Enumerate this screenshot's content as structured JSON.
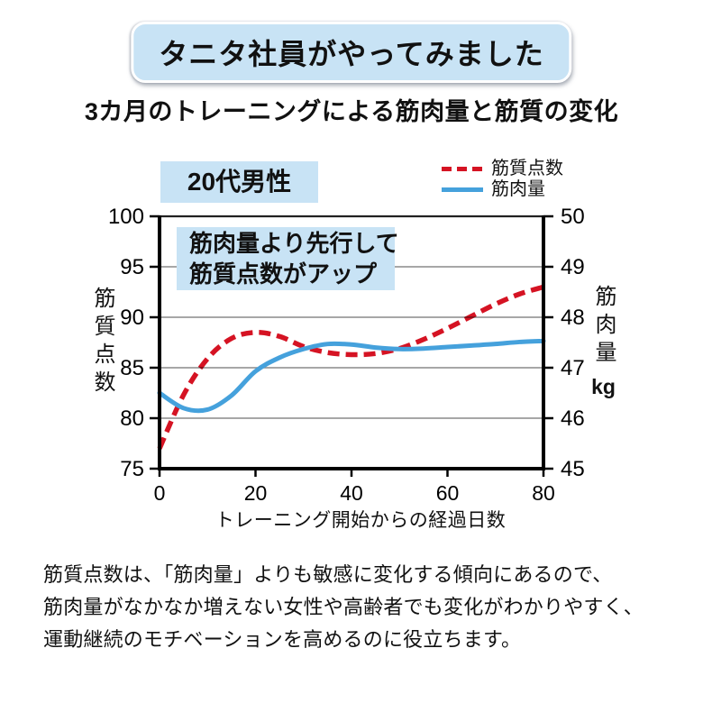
{
  "badge": {
    "label": "タニタ社員がやってみました"
  },
  "title": "3カ月のトレーニングによる筋肉量と筋質の変化",
  "chart": {
    "group_label": "20代男性",
    "annotation": {
      "line1": "筋肉量より先行して",
      "line2": "筋質点数がアップ"
    }
  },
  "chart_data": {
    "type": "line",
    "title": "3カ月のトレーニングによる筋肉量と筋質の変化",
    "x": [
      0,
      5,
      10,
      15,
      20,
      25,
      30,
      35,
      40,
      45,
      50,
      55,
      60,
      65,
      70,
      75,
      80
    ],
    "series": [
      {
        "name": "筋質点数",
        "axis": "left",
        "style": "dashed",
        "color": "#d51323",
        "values": [
          77.0,
          82.3,
          85.9,
          87.9,
          88.5,
          88.1,
          87.1,
          86.5,
          86.3,
          86.4,
          86.9,
          87.8,
          88.9,
          90.1,
          91.3,
          92.3,
          93.0
        ]
      },
      {
        "name": "筋肉量",
        "axis": "right",
        "style": "solid",
        "color": "#45a1dc",
        "values": [
          46.5,
          46.2,
          46.17,
          46.45,
          46.93,
          47.2,
          47.37,
          47.47,
          47.46,
          47.4,
          47.37,
          47.38,
          47.41,
          47.44,
          47.47,
          47.51,
          47.53
        ]
      }
    ],
    "x_range": [
      0,
      80
    ],
    "left_range": [
      75,
      100
    ],
    "right_range": [
      45,
      50
    ],
    "x_ticks": [
      0,
      20,
      40,
      60,
      80
    ],
    "left_ticks": [
      75,
      80,
      85,
      90,
      95,
      100
    ],
    "right_ticks": [
      45,
      46,
      47,
      48,
      49,
      50
    ],
    "xlabel": "トレーニング開始からの経過日数",
    "left_ylabel": "筋質点数",
    "right_ylabel": "筋肉量",
    "right_unit": "kg",
    "grid": true,
    "grid_color": "#8a8a8a",
    "axis_color": "#000000",
    "legend_position": "top-right"
  },
  "footer": {
    "lines": [
      "筋質点数は、「筋肉量」よりも敏感に変化する傾向にあるので、",
      "筋肉量がなかなか増えない女性や高齢者でも変化がわかりやすく、",
      "運動継続のモチベーションを高めるのに役立ちます。"
    ]
  }
}
